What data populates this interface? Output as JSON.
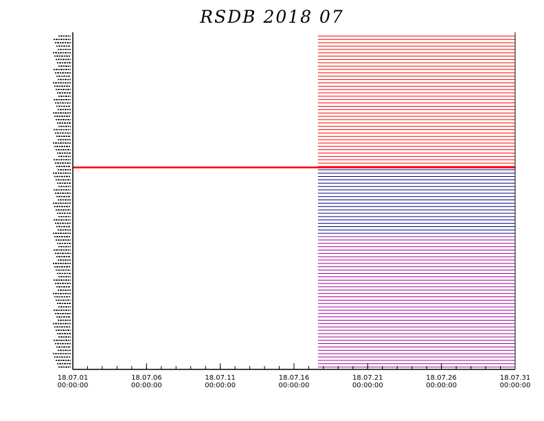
{
  "chart_data": {
    "type": "timeline",
    "title": "RSDB  2018  07",
    "x_ticks": [
      {
        "day": 1,
        "date": "18.07.01",
        "time": "00:00:00"
      },
      {
        "day": 6,
        "date": "18.07.06",
        "time": "00:00:00"
      },
      {
        "day": 11,
        "date": "18.07.11",
        "time": "00:00:00"
      },
      {
        "day": 16,
        "date": "18.07.16",
        "time": "00:00:00"
      },
      {
        "day": 21,
        "date": "18.07.21",
        "time": "00:00:00"
      },
      {
        "day": 26,
        "date": "18.07.26",
        "time": "00:00:00"
      },
      {
        "day": 31,
        "date": "18.07.31",
        "time": "00:00:00"
      }
    ],
    "xlim": [
      "18.07.01 00:00:00",
      "18.07.31 00:00:00"
    ],
    "groups": [
      {
        "color": "#ff0000",
        "rows": 40,
        "start": "18.07.17 15:00:00",
        "end": "18.07.31 00:00:00"
      },
      {
        "color": "#000080",
        "rows": 20,
        "start": "18.07.17 15:00:00",
        "end": "18.07.31 00:00:00"
      },
      {
        "color": "#990099",
        "rows": 40,
        "start": "18.07.17 15:00:00",
        "end": "18.07.31 00:00:00"
      }
    ],
    "long_record": {
      "color": "#ff0000",
      "start": "18.07.01 00:00:00",
      "end": "18.07.31 00:00:00"
    },
    "row_labels_legible": false,
    "grid": false
  }
}
